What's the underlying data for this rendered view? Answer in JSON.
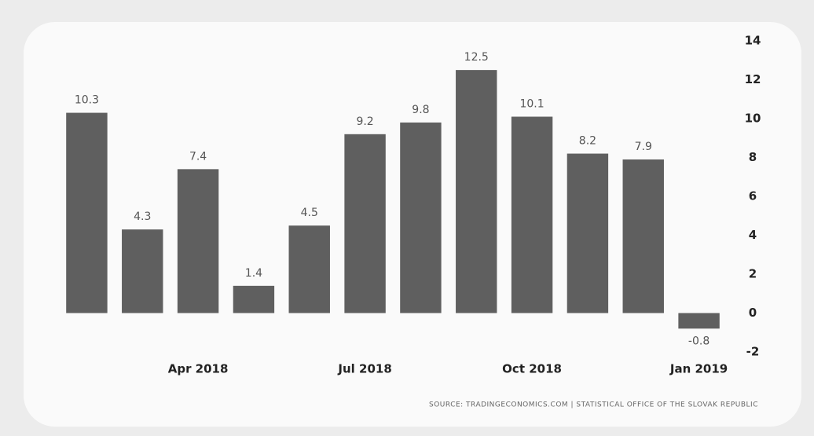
{
  "chart_data": {
    "type": "bar",
    "categories": [
      null,
      null,
      "Apr 2018",
      null,
      null,
      "Jul 2018",
      null,
      null,
      "Oct 2018",
      null,
      null,
      "Jan 2019"
    ],
    "values": [
      10.3,
      4.3,
      7.4,
      1.4,
      4.5,
      9.2,
      9.8,
      12.5,
      10.1,
      8.2,
      7.9,
      -0.8
    ],
    "color": "#5f5f5f",
    "ylim": [
      -2,
      14
    ],
    "yticks": [
      -2,
      0,
      2,
      4,
      6,
      8,
      10,
      12,
      14
    ],
    "source": "SOURCE: TRADINGECONOMICS.COM | STATISTICAL OFFICE OF THE SLOVAK REPUBLIC"
  }
}
